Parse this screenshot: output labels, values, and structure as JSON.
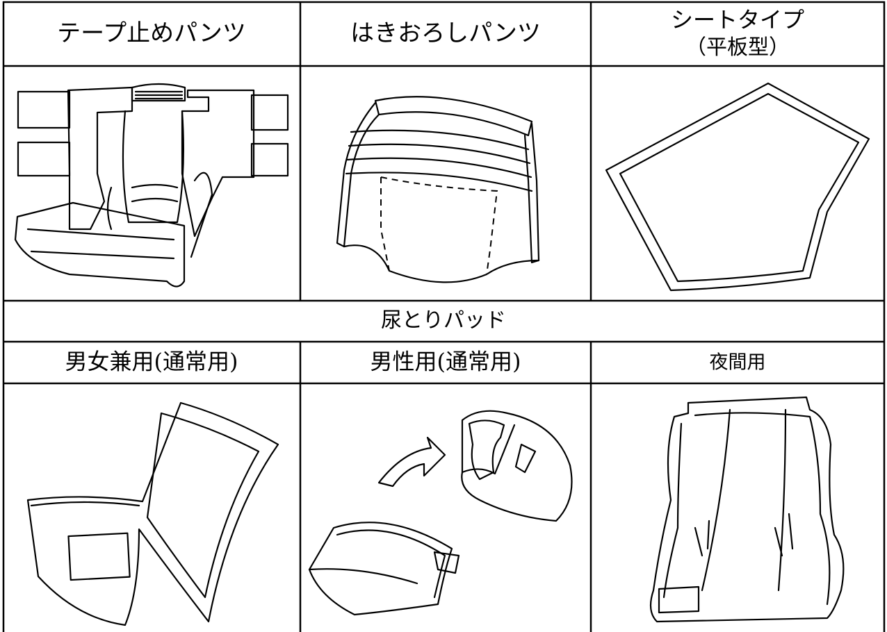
{
  "table": {
    "columns": [
      "テープ止めパンツ",
      "はきおろしパンツ"
    ],
    "sheet_type": {
      "name": "シートタイプ",
      "note": "（平板型）"
    },
    "section": "尿とりパッド",
    "pad_columns": [
      "男女兼用(通常用)",
      "男性用(通常用)",
      "夜間用"
    ]
  }
}
